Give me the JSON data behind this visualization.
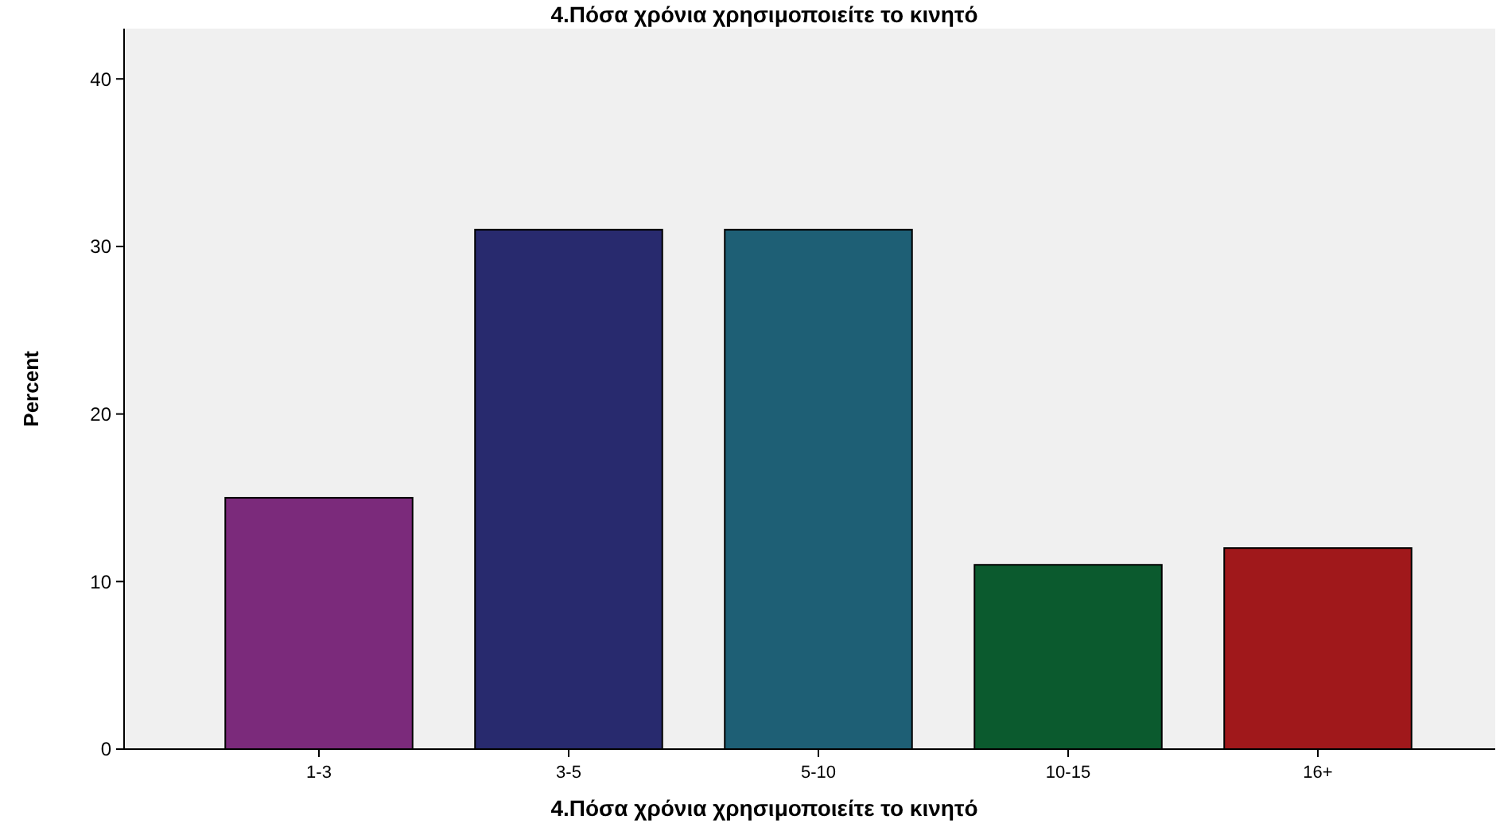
{
  "chart_data": {
    "type": "bar",
    "title": "4.Πόσα χρόνια χρησιμοποιείτε το κινητό",
    "xlabel": "4.Πόσα χρόνια χρησιμοποιείτε το κινητό",
    "ylabel": "Percent",
    "categories": [
      "1-3",
      "3-5",
      "5-10",
      "10-15",
      "16+"
    ],
    "values": [
      15,
      31,
      31,
      11,
      12
    ],
    "colors": [
      "#7b2a7b",
      "#282a6e",
      "#1e5f75",
      "#0b5a2e",
      "#a0181b"
    ],
    "ylim": [
      0,
      43
    ],
    "yticks": [
      0,
      10,
      20,
      30,
      40
    ],
    "grid": false
  }
}
